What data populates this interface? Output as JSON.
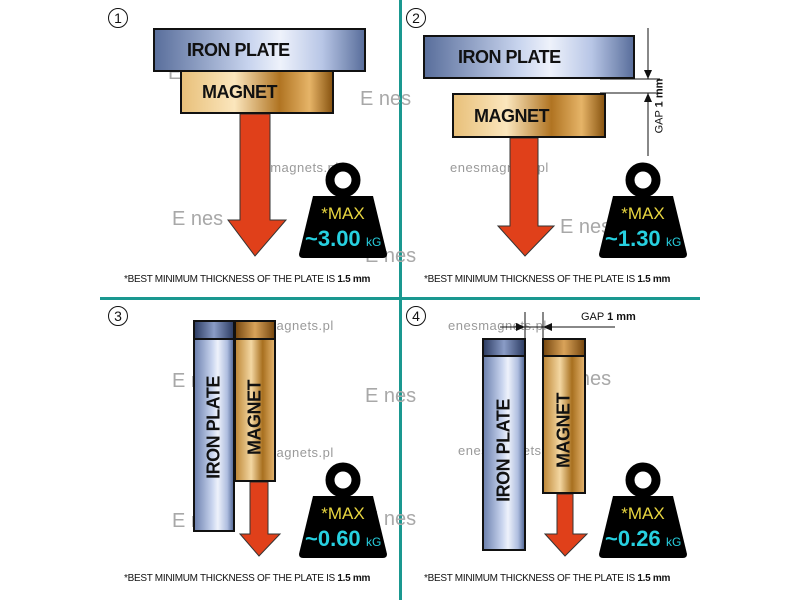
{
  "watermark": {
    "site": "enesmagnets.pl",
    "logo": "Enes"
  },
  "colors": {
    "divider": "#1a9890",
    "arrow": "#e0401a",
    "max_label": "#e8d640",
    "value": "#27d0e0"
  },
  "quadrants": [
    {
      "number": "1",
      "plate_label": "IRON PLATE",
      "magnet_label": "MAGNET",
      "max_label": "*MAX",
      "value": "~3.00",
      "unit": "kG",
      "note": "*BEST MINIMUM THICKNESS OF THE PLATE IS ",
      "note_bold": "1.5 mm"
    },
    {
      "number": "2",
      "plate_label": "IRON PLATE",
      "magnet_label": "MAGNET",
      "max_label": "*MAX",
      "value": "~1.30",
      "unit": "kG",
      "gap_label": "GAP",
      "gap_value": "1 mm",
      "note": "*BEST MINIMUM THICKNESS OF THE PLATE IS ",
      "note_bold": "1.5 mm"
    },
    {
      "number": "3",
      "plate_label": "IRON  PLATE",
      "magnet_label": "MAGNET",
      "max_label": "*MAX",
      "value": "~0.60",
      "unit": "kG",
      "note": "*BEST MINIMUM THICKNESS OF THE PLATE IS ",
      "note_bold": "1.5 mm"
    },
    {
      "number": "4",
      "plate_label": "IRON PLATE",
      "magnet_label": "MAGNET",
      "max_label": "*MAX",
      "value": "~0.26",
      "unit": "kG",
      "gap_label": "GAP",
      "gap_value": "1 mm",
      "note": "*BEST MINIMUM THICKNESS OF THE PLATE IS ",
      "note_bold": "1.5 mm"
    }
  ]
}
